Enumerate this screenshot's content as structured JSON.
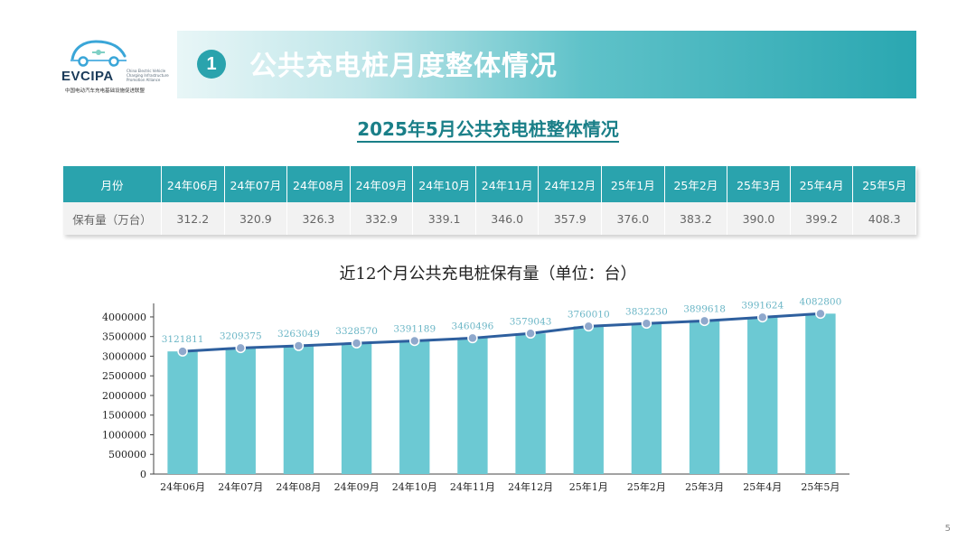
{
  "logo": {
    "brand": "EVCIPA",
    "brand_sub": "China Electric Vehicle Charging Infrastructure Promotion Alliance",
    "org": "中国电动汽车充电基础设施促进联盟",
    "icon": "car-plug-logo-icon"
  },
  "header": {
    "badge": "1",
    "title": "公共充电桩月度整体情况"
  },
  "subtitle": "2025年5月公共充电桩整体情况",
  "table": {
    "row_label": "月份",
    "value_label": "保有量（万台）",
    "months": [
      "24年06月",
      "24年07月",
      "24年08月",
      "24年09月",
      "24年10月",
      "24年11月",
      "24年12月",
      "25年1月",
      "25年2月",
      "25年3月",
      "25年4月",
      "25年5月"
    ],
    "values": [
      "312.2",
      "320.9",
      "326.3",
      "332.9",
      "339.1",
      "346.0",
      "357.9",
      "376.0",
      "383.2",
      "390.0",
      "399.2",
      "408.3"
    ]
  },
  "chart_data": {
    "type": "bar",
    "title": "近12个月公共充电桩保有量（单位：台）",
    "categories": [
      "24年06月",
      "24年07月",
      "24年08月",
      "24年09月",
      "24年10月",
      "24年11月",
      "24年12月",
      "25年1月",
      "25年2月",
      "25年3月",
      "25年4月",
      "25年5月"
    ],
    "values": [
      3121811,
      3209375,
      3263049,
      3328570,
      3391189,
      3460496,
      3579043,
      3760010,
      3832230,
      3899618,
      3991624,
      4082800
    ],
    "ylim": [
      0,
      4000000
    ],
    "yticks": [
      0,
      500000,
      1000000,
      1500000,
      2000000,
      2500000,
      3000000,
      3500000,
      4000000
    ],
    "overlay": "line",
    "colors": {
      "bar": "#6cc9d3",
      "line": "#2e5f9e",
      "marker": "#8fa8cc",
      "label": "#6bb6c6"
    }
  },
  "page_number": "5"
}
